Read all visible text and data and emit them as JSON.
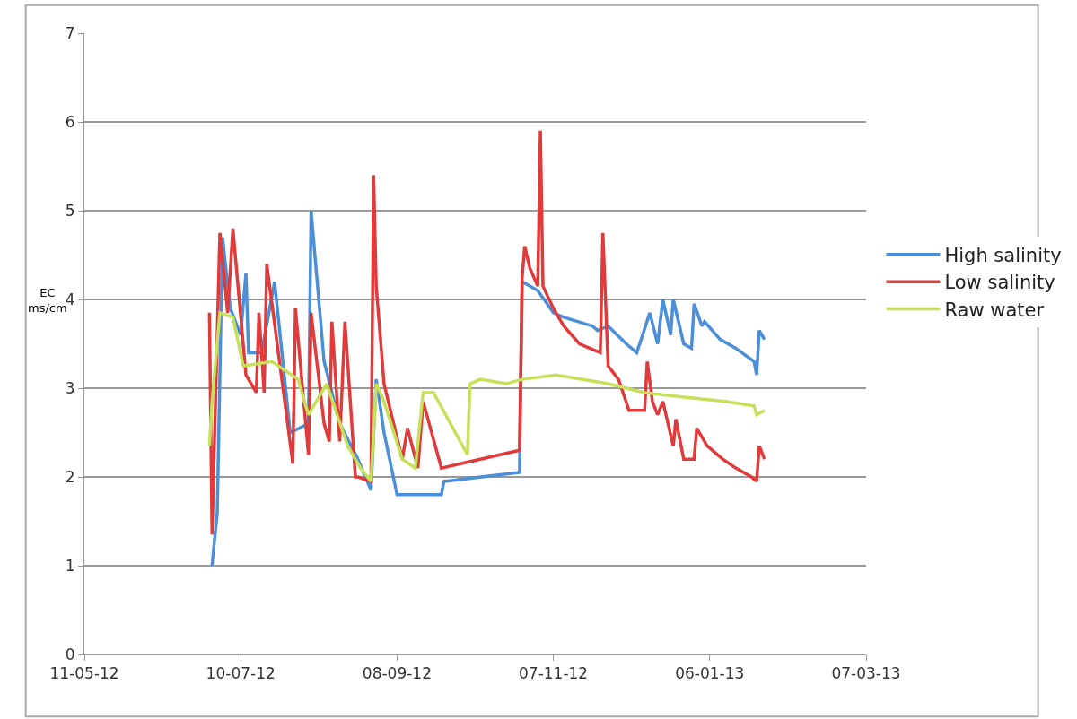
{
  "chart_data": {
    "type": "line",
    "ylabel": "EC ms/cm",
    "grid": "y",
    "legend": "right",
    "marker": "none",
    "line_style": "solid",
    "xlim": [
      "2012-05-11",
      "2013-03-07"
    ],
    "xticks": [
      {
        "value": "2012-05-11",
        "label": "11-05-12"
      },
      {
        "value": "2012-07-10",
        "label": "10-07-12"
      },
      {
        "value": "2012-09-08",
        "label": "08-09-12"
      },
      {
        "value": "2012-11-07",
        "label": "07-11-12"
      },
      {
        "value": "2013-01-06",
        "label": "06-01-13"
      },
      {
        "value": "2013-03-07",
        "label": "07-03-13"
      }
    ],
    "ylim": [
      0,
      7
    ],
    "yticks": [
      0,
      1,
      2,
      3,
      4,
      5,
      6,
      7
    ],
    "series": [
      {
        "name": "High salinity",
        "color": "#4a8fd8",
        "x": [
          "2012-06-29",
          "2012-07-01",
          "2012-07-03",
          "2012-07-06",
          "2012-07-10",
          "2012-07-12",
          "2012-07-13",
          "2012-07-18",
          "2012-07-23",
          "2012-07-29",
          "2012-08-05",
          "2012-08-06",
          "2012-08-11",
          "2012-08-17",
          "2012-08-24",
          "2012-08-29",
          "2012-08-31",
          "2012-09-03",
          "2012-09-08",
          "2012-09-25",
          "2012-09-26",
          "2012-10-25",
          "2012-10-26",
          "2012-11-01",
          "2012-11-07",
          "2012-11-11",
          "2012-11-22",
          "2012-11-24",
          "2012-11-28",
          "2012-12-05",
          "2012-12-09",
          "2012-12-14",
          "2012-12-17",
          "2012-12-19",
          "2012-12-22",
          "2012-12-23",
          "2012-12-27",
          "2012-12-30",
          "2012-12-31",
          "2013-01-03",
          "2013-01-04",
          "2013-01-10",
          "2013-01-16",
          "2013-01-23",
          "2013-01-24",
          "2013-01-25",
          "2013-01-27"
        ],
        "values": [
          1.0,
          1.6,
          4.7,
          3.9,
          3.6,
          4.3,
          3.4,
          3.4,
          4.2,
          2.5,
          2.6,
          5.0,
          3.3,
          2.6,
          2.2,
          1.85,
          3.1,
          2.5,
          1.8,
          1.8,
          1.95,
          2.05,
          4.2,
          4.1,
          3.85,
          3.8,
          3.7,
          3.65,
          3.7,
          3.5,
          3.4,
          3.85,
          3.5,
          4.0,
          3.6,
          4.0,
          3.5,
          3.45,
          3.95,
          3.7,
          3.75,
          3.55,
          3.45,
          3.3,
          3.15,
          3.65,
          3.55
        ]
      },
      {
        "name": "Low salinity",
        "color": "#e03a3a",
        "x": [
          "2012-06-28",
          "2012-06-29",
          "2012-07-02",
          "2012-07-05",
          "2012-07-07",
          "2012-07-12",
          "2012-07-16",
          "2012-07-17",
          "2012-07-19",
          "2012-07-20",
          "2012-07-30",
          "2012-07-31",
          "2012-08-05",
          "2012-08-06",
          "2012-08-11",
          "2012-08-13",
          "2012-08-14",
          "2012-08-17",
          "2012-08-19",
          "2012-08-23",
          "2012-08-24",
          "2012-08-29",
          "2012-08-30",
          "2012-08-31",
          "2012-09-03",
          "2012-09-10",
          "2012-09-12",
          "2012-09-16",
          "2012-09-18",
          "2012-09-25",
          "2012-10-10",
          "2012-10-25",
          "2012-10-26",
          "2012-10-27",
          "2012-10-29",
          "2012-11-01",
          "2012-11-02",
          "2012-11-03",
          "2012-11-07",
          "2012-11-11",
          "2012-11-17",
          "2012-11-25",
          "2012-11-26",
          "2012-11-28",
          "2012-12-02",
          "2012-12-06",
          "2012-12-12",
          "2012-12-13",
          "2012-12-15",
          "2012-12-17",
          "2012-12-19",
          "2012-12-23",
          "2012-12-24",
          "2012-12-27",
          "2012-12-31",
          "2013-01-01",
          "2013-01-05",
          "2013-01-11",
          "2013-01-16",
          "2013-01-22",
          "2013-01-24",
          "2013-01-25",
          "2013-01-27"
        ],
        "values": [
          3.85,
          1.35,
          4.75,
          3.85,
          4.8,
          3.15,
          2.95,
          3.85,
          2.95,
          4.4,
          2.15,
          3.9,
          2.25,
          3.85,
          2.6,
          2.4,
          3.75,
          2.4,
          3.75,
          2.0,
          2.0,
          1.95,
          5.4,
          4.15,
          3.05,
          2.2,
          2.55,
          2.1,
          2.85,
          2.1,
          2.2,
          2.3,
          4.25,
          4.6,
          4.35,
          4.15,
          5.9,
          4.15,
          3.9,
          3.7,
          3.5,
          3.4,
          4.75,
          3.25,
          3.1,
          2.75,
          2.75,
          3.3,
          2.85,
          2.7,
          2.85,
          2.35,
          2.65,
          2.2,
          2.2,
          2.55,
          2.35,
          2.2,
          2.1,
          2.0,
          1.95,
          2.35,
          2.2
        ]
      },
      {
        "name": "Raw water",
        "color": "#c6e05a",
        "x": [
          "2012-06-28",
          "2012-06-29",
          "2012-07-02",
          "2012-07-07",
          "2012-07-11",
          "2012-07-22",
          "2012-08-01",
          "2012-08-05",
          "2012-08-12",
          "2012-08-20",
          "2012-08-25",
          "2012-08-29",
          "2012-08-31",
          "2012-09-03",
          "2012-09-10",
          "2012-09-15",
          "2012-09-18",
          "2012-09-22",
          "2012-10-05",
          "2012-10-06",
          "2012-10-10",
          "2012-10-20",
          "2012-10-26",
          "2012-11-08",
          "2012-11-28",
          "2012-12-12",
          "2012-12-27",
          "2013-01-12",
          "2013-01-23",
          "2013-01-24",
          "2013-01-27"
        ],
        "values": [
          2.35,
          2.85,
          3.85,
          3.8,
          3.25,
          3.3,
          3.1,
          2.7,
          3.05,
          2.35,
          2.1,
          1.95,
          3.05,
          2.85,
          2.2,
          2.1,
          2.95,
          2.95,
          2.25,
          3.05,
          3.1,
          3.05,
          3.1,
          3.15,
          3.05,
          2.95,
          2.9,
          2.85,
          2.8,
          2.7,
          2.75
        ]
      }
    ]
  }
}
